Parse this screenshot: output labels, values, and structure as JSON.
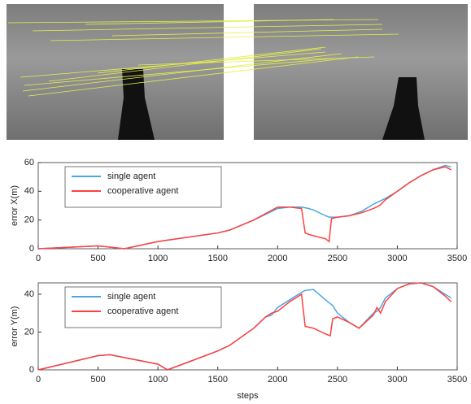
{
  "chart_data": [
    {
      "type": "line",
      "ylabel": "error X(m)",
      "x": [
        0,
        500,
        720,
        1000,
        1500,
        1600,
        1800,
        2000,
        2100,
        2200,
        2230,
        2260,
        2300,
        2400,
        2430,
        2450,
        2500,
        2600,
        2700,
        2800,
        2850,
        2900,
        3000,
        3100,
        3200,
        3300,
        3400,
        3450
      ],
      "series": [
        {
          "name": "single agent",
          "color": "#4da6e0",
          "values": [
            0,
            2,
            0,
            5,
            11,
            13,
            20,
            28,
            29,
            29,
            28.5,
            28,
            27,
            23,
            22,
            22,
            22,
            23,
            26,
            31,
            33,
            35,
            40,
            46,
            51,
            55,
            58,
            57
          ]
        },
        {
          "name": "cooperative agent",
          "color": "#ff4040",
          "values": [
            0,
            2,
            0,
            5,
            11,
            13,
            20,
            29,
            29,
            28,
            11,
            10,
            9,
            7,
            5,
            21,
            22,
            23,
            25,
            28,
            30,
            34,
            40,
            46,
            51,
            55,
            57,
            55
          ]
        }
      ],
      "xlim": [
        0,
        3500
      ],
      "xticks": [
        0,
        500,
        1000,
        1500,
        2000,
        2500,
        3000,
        3500
      ],
      "ylim": [
        0,
        60
      ],
      "yticks": [
        0,
        20,
        40,
        60
      ],
      "legend": "upper left"
    },
    {
      "type": "line",
      "ylabel": "error Y(m)",
      "xlabel": "steps",
      "x": [
        0,
        500,
        600,
        1000,
        1080,
        1500,
        1600,
        1800,
        1900,
        1950,
        2000,
        2100,
        2200,
        2230,
        2300,
        2400,
        2440,
        2460,
        2500,
        2600,
        2680,
        2800,
        2830,
        2860,
        2900,
        3000,
        3100,
        3200,
        3300,
        3400,
        3450
      ],
      "series": [
        {
          "name": "single agent",
          "color": "#4da6e0",
          "values": [
            0,
            7.5,
            8,
            3,
            0,
            10,
            13,
            22,
            28,
            29,
            33,
            37,
            41,
            42,
            42.5,
            37,
            35,
            34,
            30,
            25,
            22,
            30,
            31,
            33,
            38,
            43,
            45.5,
            46,
            44,
            40,
            38
          ]
        },
        {
          "name": "cooperative agent",
          "color": "#ff4040",
          "values": [
            0,
            7.5,
            8,
            3,
            0,
            10,
            13,
            22,
            28,
            30,
            31,
            36,
            40,
            23,
            22,
            19,
            18,
            27,
            28,
            25,
            22,
            29,
            33,
            30,
            36,
            43,
            45.5,
            46,
            44,
            39,
            36
          ]
        }
      ],
      "xlim": [
        0,
        3500
      ],
      "xticks": [
        0,
        500,
        1000,
        1500,
        2000,
        2500,
        3000,
        3500
      ],
      "ylim": [
        0,
        46
      ],
      "yticks": [
        0,
        20,
        40
      ],
      "legend": "upper left"
    }
  ]
}
